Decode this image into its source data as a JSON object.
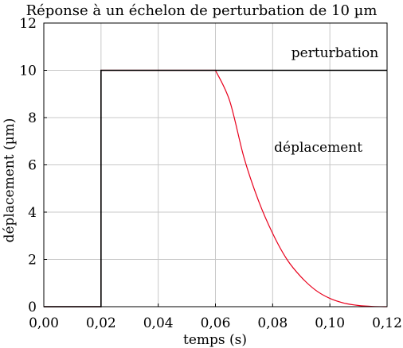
{
  "chart_data": {
    "type": "line",
    "title": "Réponse à un échelon de perturbation de 10 µm",
    "xlabel": "temps (s)",
    "ylabel": "déplacement (µm)",
    "xlim": [
      0,
      0.12
    ],
    "ylim": [
      0,
      12
    ],
    "grid": true,
    "x_ticks": [
      0,
      0.02,
      0.04,
      0.06,
      0.08,
      0.1,
      0.12
    ],
    "x_tick_labels": [
      "0,00",
      "0,02",
      "0,04",
      "0,06",
      "0,08",
      "0,10",
      "0,12"
    ],
    "y_ticks": [
      0,
      2,
      4,
      6,
      8,
      10,
      12
    ],
    "y_tick_labels": [
      "0",
      "2",
      "4",
      "6",
      "8",
      "10",
      "12"
    ],
    "series": [
      {
        "name": "perturbation",
        "color": "#000000",
        "x": [
          0,
          0.02,
          0.02,
          0.12
        ],
        "y": [
          0,
          0,
          10,
          10
        ]
      },
      {
        "name": "déplacement",
        "color": "#e8001c",
        "x": [
          0,
          0.02,
          0.02,
          0.06,
          0.065,
          0.07,
          0.075,
          0.08,
          0.085,
          0.09,
          0.095,
          0.1,
          0.105,
          0.11,
          0.115,
          0.12
        ],
        "y": [
          0,
          0,
          10,
          10,
          8.7,
          6.3,
          4.5,
          3.1,
          2.0,
          1.25,
          0.7,
          0.35,
          0.15,
          0.05,
          0.01,
          0
        ]
      }
    ],
    "annotations": [
      {
        "text": "perturbation",
        "x": 0.117,
        "y": 10.55
      },
      {
        "text": "déplacement",
        "x": 0.0805,
        "y": 6.55
      }
    ]
  }
}
